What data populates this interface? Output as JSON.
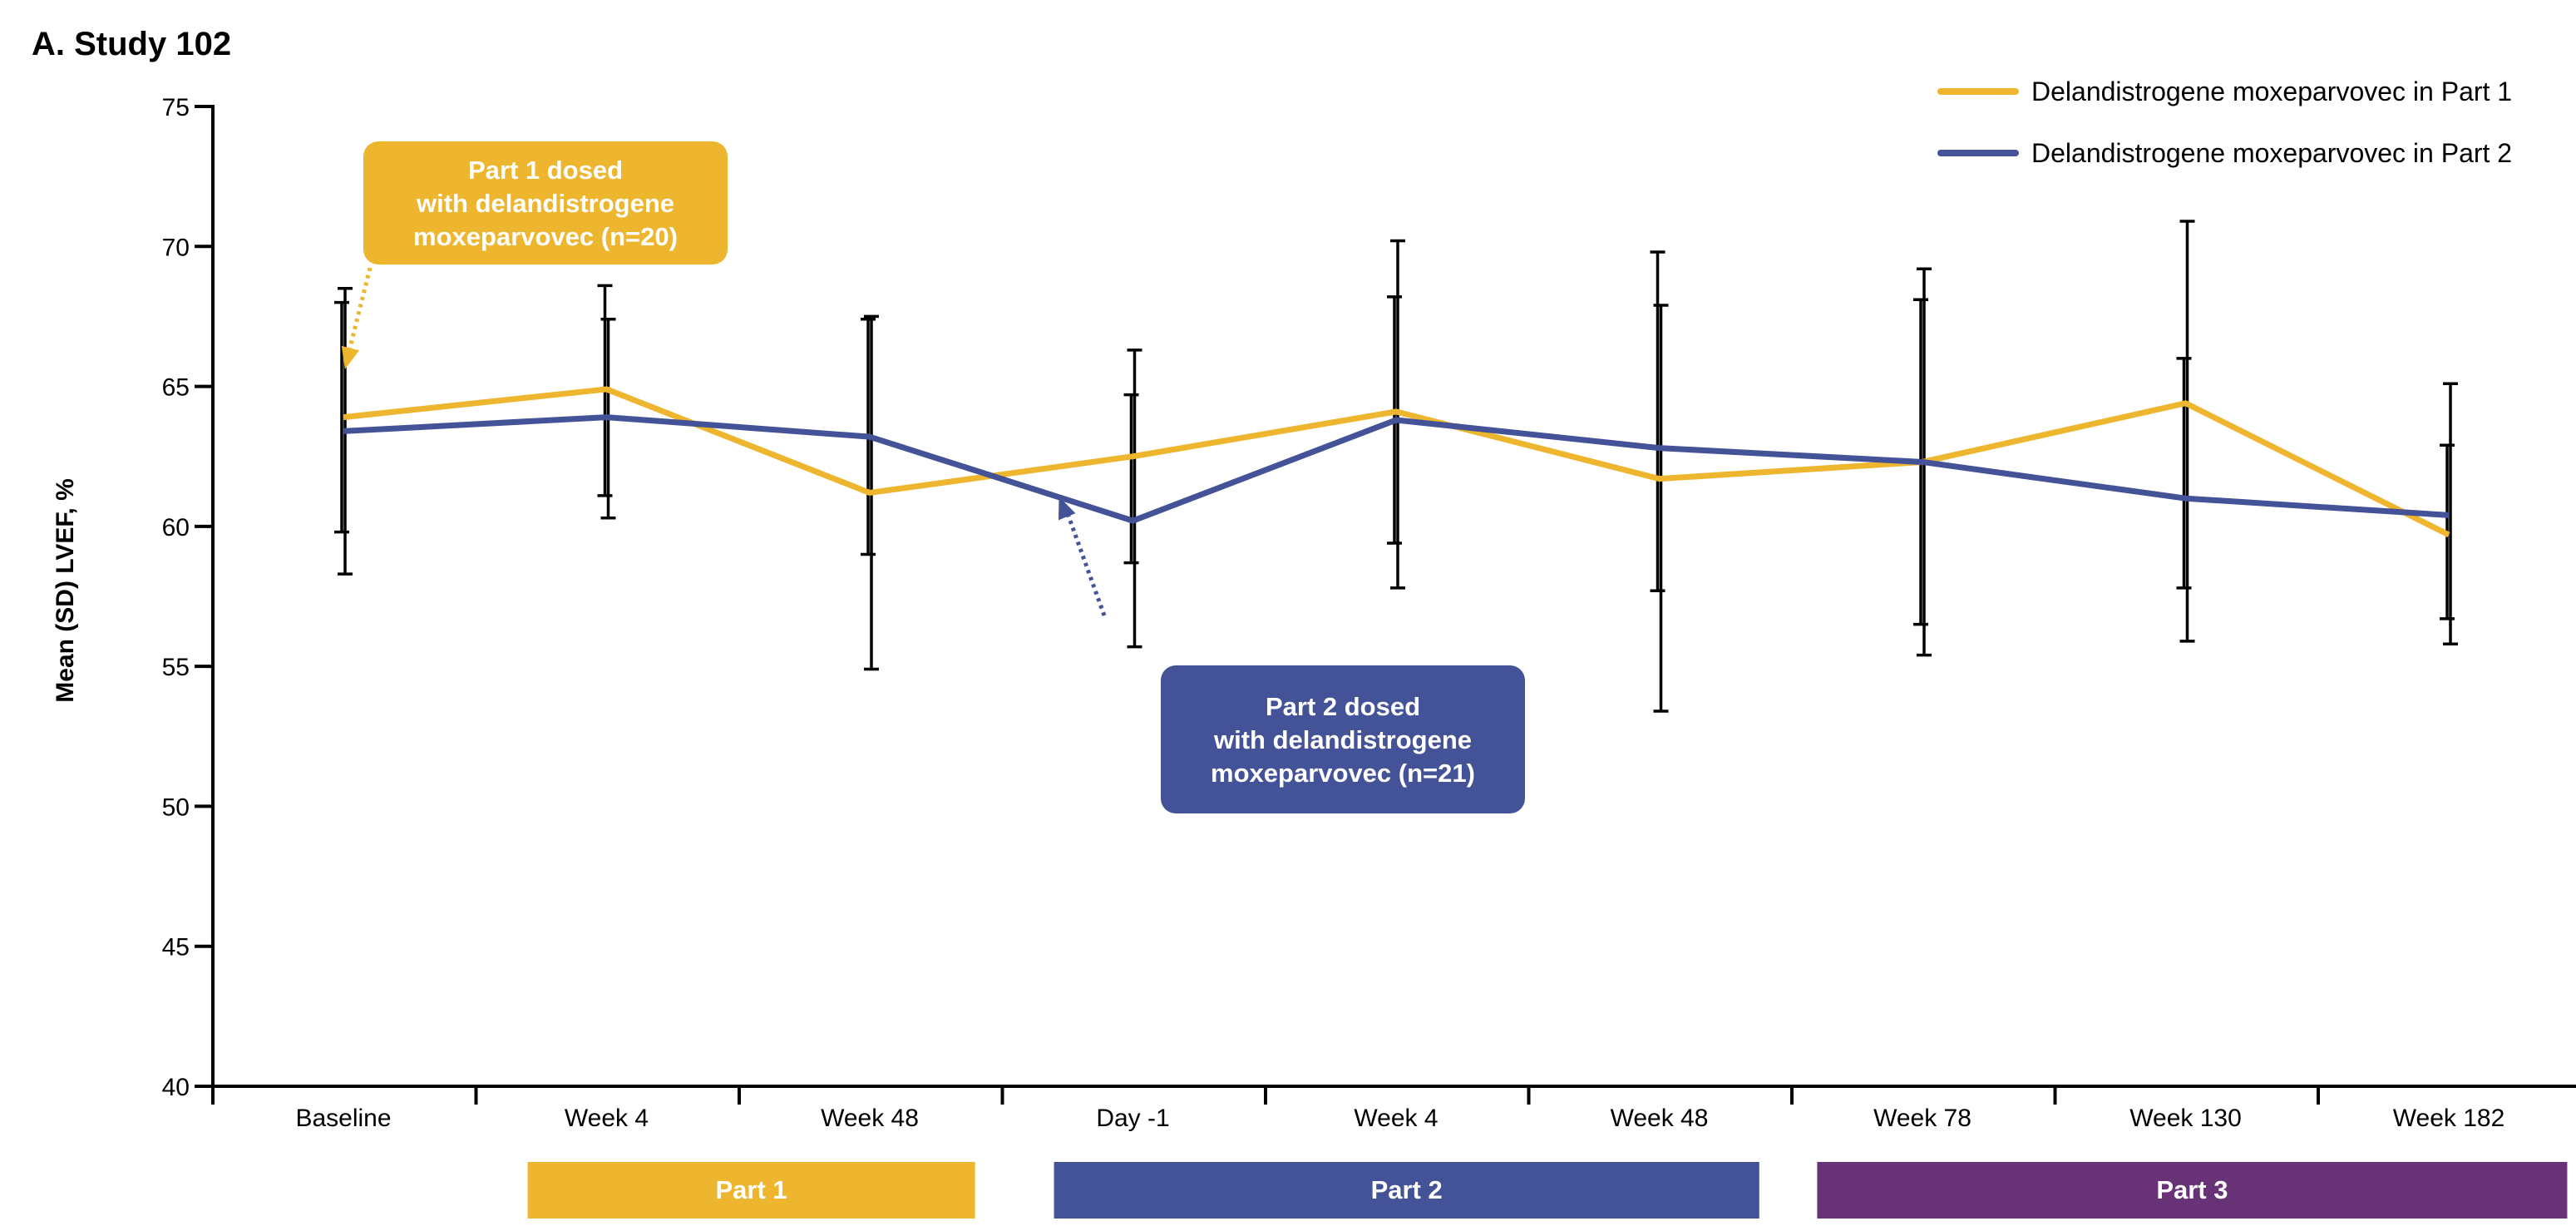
{
  "colors": {
    "part1": "#EDB62E",
    "part2": "#445297",
    "part3": "#683277",
    "axis": "#000000",
    "errorbar": "#000000"
  },
  "chart_data": {
    "type": "line",
    "title": "A. Study 102",
    "ylabel": "Mean (SD) LVEF, %",
    "ylim": [
      40,
      75
    ],
    "yticks": [
      40,
      45,
      50,
      55,
      60,
      65,
      70,
      75
    ],
    "categories": [
      "Baseline",
      "Week 4",
      "Week 48",
      "Day -1",
      "Week 4",
      "Week 48",
      "Week 78",
      "Week 130",
      "Week 182"
    ],
    "legend_position": "top-right",
    "series": [
      {
        "name": "Delandistrogene moxeparvovec in Part 1",
        "color_key": "part1",
        "values": [
          63.9,
          64.9,
          61.2,
          62.5,
          64.1,
          61.7,
          62.3,
          64.4,
          59.7
        ],
        "lower": [
          59.8,
          61.1,
          59.0,
          58.7,
          59.4,
          57.7,
          56.5,
          57.8,
          56.7
        ],
        "upper": [
          68.0,
          68.6,
          67.4,
          64.7,
          68.2,
          69.8,
          68.1,
          66.0,
          62.9
        ]
      },
      {
        "name": "Delandistrogene moxeparvovec in Part 2",
        "color_key": "part2",
        "values": [
          63.4,
          63.9,
          63.2,
          60.2,
          63.8,
          62.8,
          62.3,
          61.0,
          60.4
        ],
        "lower": [
          58.3,
          60.3,
          54.9,
          55.7,
          57.8,
          53.4,
          55.4,
          55.9,
          55.8
        ],
        "upper": [
          68.5,
          67.4,
          67.5,
          66.3,
          70.2,
          67.9,
          69.2,
          70.9,
          65.1
        ]
      }
    ],
    "annotations": [
      {
        "lines": [
          "Part 1 dosed",
          "with delandistrogene",
          "moxeparvovec (n=20)"
        ],
        "color_key": "part1",
        "points_to": {
          "category_index": 0,
          "y": 65.5
        }
      },
      {
        "lines": [
          "Part 2 dosed",
          "with delandistrogene",
          "moxeparvovec (n=21)"
        ],
        "color_key": "part2",
        "points_to": {
          "category_index": 2.7,
          "y": 61.3
        }
      }
    ],
    "bands": [
      {
        "label": "Part 1",
        "color_key": "part1",
        "from_index": 0.7,
        "to_index": 2.4
      },
      {
        "label": "Part 2",
        "color_key": "part2",
        "from_index": 2.7,
        "to_index": 5.38
      },
      {
        "label": "Part 3",
        "color_key": "part3",
        "from_index": 5.6,
        "to_index": 8.45
      }
    ]
  }
}
